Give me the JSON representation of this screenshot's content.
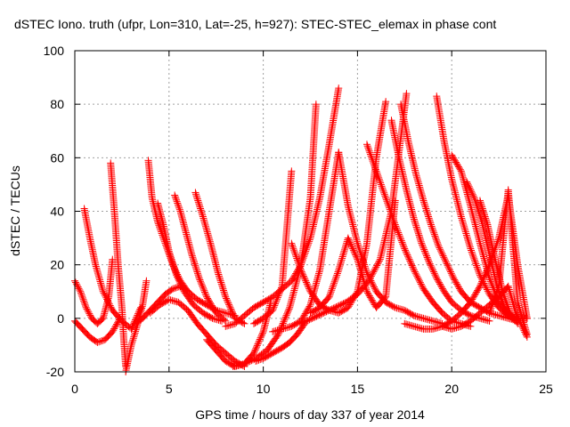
{
  "chart_data": {
    "type": "scatter",
    "title": "dSTEC Iono. truth (ufpr, Lon=310, Lat=-25, h=927): STEC-STEC_elemax in phase cont",
    "xlabel": "GPS time / hours of day 337 of year 2014",
    "ylabel": "dSTEC  / TECUs",
    "xlim": [
      0,
      25
    ],
    "ylim": [
      -20,
      100
    ],
    "x_ticks": [
      "0",
      "5",
      "10",
      "15",
      "20",
      "25"
    ],
    "y_ticks": [
      "-20",
      "0",
      "20",
      "40",
      "60",
      "80",
      "100"
    ],
    "grid": true,
    "marker": "plus",
    "color": "#ff0000",
    "series": [
      {
        "x": [
          0.0,
          0.3,
          0.6,
          0.9,
          1.2,
          1.5,
          1.8,
          2.0
        ],
        "y": [
          14,
          10,
          4,
          0,
          -2,
          0,
          8,
          22
        ]
      },
      {
        "x": [
          0.0,
          0.4,
          0.8,
          1.2,
          1.6,
          2.0,
          2.4
        ],
        "y": [
          -1,
          -4,
          -7,
          -9,
          -8,
          -5,
          0
        ]
      },
      {
        "x": [
          0.5,
          0.8,
          1.1,
          1.5,
          2.0,
          2.5,
          3.0,
          3.5
        ],
        "y": [
          41,
          30,
          20,
          10,
          3,
          -1,
          -4,
          4
        ]
      },
      {
        "x": [
          1.9,
          2.1,
          2.3,
          2.5,
          2.6,
          2.7
        ],
        "y": [
          58,
          40,
          20,
          4,
          -8,
          -18
        ]
      },
      {
        "x": [
          2.7,
          3.0,
          3.3,
          3.6,
          3.8
        ],
        "y": [
          -20,
          -10,
          -3,
          5,
          14
        ]
      },
      {
        "x": [
          3.9,
          4.1,
          4.4,
          4.8,
          5.2,
          5.6,
          6.0,
          6.5,
          7.0,
          7.5,
          8.0,
          8.5
        ],
        "y": [
          59,
          45,
          36,
          28,
          20,
          14,
          10,
          7,
          5,
          3,
          2,
          1
        ]
      },
      {
        "x": [
          4.4,
          4.7,
          5.0,
          5.4,
          5.8,
          6.3,
          6.8,
          7.3,
          7.8
        ],
        "y": [
          43,
          35,
          25,
          16,
          10,
          5,
          2,
          0,
          -1
        ]
      },
      {
        "x": [
          5.3,
          5.6,
          5.9,
          6.2,
          6.6,
          7.0,
          7.5,
          8.0
        ],
        "y": [
          46,
          40,
          32,
          24,
          15,
          8,
          2,
          -1
        ]
      },
      {
        "x": [
          6.4,
          6.8,
          7.2,
          7.6,
          8.0,
          8.5,
          9.0
        ],
        "y": [
          47,
          38,
          28,
          17,
          8,
          0,
          -2
        ]
      },
      {
        "x": [
          4.0,
          4.5,
          5.0,
          5.5,
          6.0,
          6.5,
          7.0,
          7.5,
          8.0,
          8.5,
          9.0
        ],
        "y": [
          2,
          5,
          7,
          6,
          3,
          -2,
          -6,
          -10,
          -13,
          -16,
          -18
        ]
      },
      {
        "x": [
          3.2,
          3.6,
          4.0,
          4.4,
          4.8,
          5.2,
          5.6,
          6.0
        ],
        "y": [
          -2,
          0,
          3,
          6,
          9,
          11,
          12,
          10
        ]
      },
      {
        "x": [
          7.0,
          7.5,
          8.0,
          8.5,
          9.0,
          9.5,
          10.0,
          10.4
        ],
        "y": [
          -8,
          -12,
          -16,
          -18,
          -17,
          -13,
          -5,
          6
        ]
      },
      {
        "x": [
          8.0,
          8.5,
          9.0,
          9.5,
          10.0,
          10.5,
          11.0,
          11.5,
          12.0,
          12.5,
          13.0,
          13.5,
          14.0
        ],
        "y": [
          -3,
          -2,
          1,
          4,
          6,
          8,
          11,
          14,
          20,
          30,
          45,
          65,
          86
        ]
      },
      {
        "x": [
          8.4,
          9.0,
          9.6,
          10.2,
          10.8,
          11.4,
          12.0,
          12.5,
          12.8
        ],
        "y": [
          -18,
          -17,
          -15,
          -12,
          -6,
          4,
          20,
          45,
          80
        ]
      },
      {
        "x": [
          9.6,
          10.0,
          10.5,
          11.0,
          11.4,
          11.8,
          12.2
        ],
        "y": [
          -16,
          -15,
          -13,
          -11,
          -9,
          -6,
          -2
        ]
      },
      {
        "x": [
          9.5,
          10.0,
          10.5,
          11.0,
          11.5
        ],
        "y": [
          -2,
          0,
          3,
          12,
          55
        ]
      },
      {
        "x": [
          10.5,
          11.0,
          11.5,
          12.0,
          12.5,
          13.0,
          13.5,
          14.0
        ],
        "y": [
          -5,
          -4,
          -3,
          -1,
          5,
          18,
          40,
          62
        ]
      },
      {
        "x": [
          12.0,
          12.6,
          13.2,
          13.8,
          14.4,
          15.0,
          15.6,
          16.2,
          16.8,
          17.2,
          17.6
        ],
        "y": [
          -2,
          0,
          2,
          4,
          6,
          9,
          14,
          22,
          40,
          62,
          84
        ]
      },
      {
        "x": [
          11.5,
          12.0,
          12.5,
          13.0,
          13.5,
          14.0,
          14.5,
          15.0,
          15.5,
          16.0,
          16.5
        ],
        "y": [
          28,
          18,
          10,
          5,
          3,
          2,
          4,
          10,
          28,
          60,
          81
        ]
      },
      {
        "x": [
          12.5,
          13.0,
          13.5,
          14.0,
          14.5,
          15.0,
          15.5,
          16.0,
          16.5,
          17.0
        ],
        "y": [
          2,
          4,
          8,
          18,
          30,
          22,
          10,
          4,
          8,
          44
        ]
      },
      {
        "x": [
          14.0,
          14.5,
          15.0,
          15.5,
          16.0,
          16.5,
          17.0,
          17.5,
          18.0,
          18.5,
          19.0,
          19.5
        ],
        "y": [
          62,
          42,
          28,
          17,
          10,
          6,
          4,
          3,
          1,
          0,
          -1,
          -2
        ]
      },
      {
        "x": [
          15.5,
          16.0,
          16.5,
          17.0,
          17.5,
          18.0,
          18.5,
          19.0,
          19.5,
          20.0,
          20.5,
          21.0
        ],
        "y": [
          65,
          55,
          45,
          35,
          26,
          18,
          11,
          6,
          2,
          -1,
          -2,
          -3
        ]
      },
      {
        "x": [
          16.8,
          17.2,
          17.6,
          18.0,
          18.4,
          18.8,
          19.2,
          19.6,
          20.0,
          20.5,
          21.0,
          21.5,
          22.0
        ],
        "y": [
          74,
          60,
          48,
          37,
          28,
          21,
          15,
          10,
          6,
          3,
          1,
          0,
          -1
        ]
      },
      {
        "x": [
          17.3,
          17.7,
          18.1,
          18.5,
          18.9,
          19.3,
          19.7,
          20.1,
          20.5,
          21.0,
          21.5,
          22.0,
          22.5,
          23.0,
          23.5
        ],
        "y": [
          80,
          66,
          54,
          44,
          35,
          27,
          21,
          15,
          10,
          6,
          4,
          2,
          1,
          0,
          -1
        ]
      },
      {
        "x": [
          17.5,
          18.0,
          18.5,
          19.0,
          19.5,
          20.0,
          20.5,
          21.0,
          21.5,
          22.0,
          22.5,
          23.0,
          23.5,
          24.0
        ],
        "y": [
          -2,
          -3,
          -4,
          -4,
          -3,
          -1,
          2,
          6,
          12,
          20,
          30,
          46,
          20,
          0
        ]
      },
      {
        "x": [
          19.2,
          19.6,
          20.0,
          20.5,
          21.0,
          21.5,
          22.0,
          22.5,
          23.0,
          23.5,
          24.0
        ],
        "y": [
          83,
          66,
          52,
          38,
          26,
          16,
          9,
          4,
          1,
          0,
          0
        ]
      },
      {
        "x": [
          19.5,
          20.0,
          20.5,
          21.0,
          21.5,
          22.0,
          22.5,
          23.0,
          23.4,
          23.8,
          24.0
        ],
        "y": [
          -3,
          -4,
          -3,
          -1,
          2,
          5,
          8,
          12,
          2,
          -4,
          -7
        ]
      },
      {
        "x": [
          20.0,
          20.5,
          21.0,
          21.5,
          22.0,
          22.5,
          23.0
        ],
        "y": [
          61,
          55,
          42,
          28,
          15,
          6,
          1
        ]
      },
      {
        "x": [
          20.8,
          21.2,
          21.6,
          22.0,
          22.4,
          22.8,
          23.2
        ],
        "y": [
          51,
          45,
          36,
          24,
          12,
          4,
          0
        ]
      },
      {
        "x": [
          21.5,
          21.9,
          22.3,
          22.7,
          23.1,
          23.5
        ],
        "y": [
          44,
          35,
          22,
          10,
          2,
          -2
        ]
      },
      {
        "x": [
          22.0,
          22.5,
          23.0,
          23.5,
          24.0
        ],
        "y": [
          2,
          12,
          48,
          6,
          -6
        ]
      }
    ]
  }
}
